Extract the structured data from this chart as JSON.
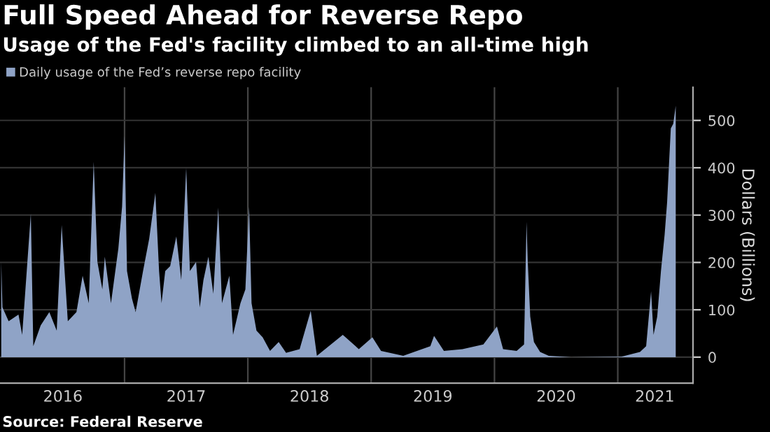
{
  "chart_data": {
    "type": "area",
    "title": "Full Speed Ahead for Reverse Repo",
    "subtitle": "Usage of the Fed's facility climbed to an all-time high",
    "ylabel": "Dollars (Billions)",
    "annotations": [
      "Source: Federal Reserve"
    ],
    "x": [
      2016.0,
      2016.01,
      2016.06,
      2016.14,
      2016.17,
      2016.24,
      2016.26,
      2016.32,
      2016.39,
      2016.45,
      2016.49,
      2016.54,
      2016.61,
      2016.66,
      2016.71,
      2016.72,
      2016.75,
      2016.78,
      2016.82,
      2016.84,
      2016.89,
      2016.95,
      2016.98,
      2017.0,
      2017.02,
      2017.06,
      2017.09,
      2017.15,
      2017.2,
      2017.25,
      2017.28,
      2017.3,
      2017.33,
      2017.37,
      2017.42,
      2017.46,
      2017.5,
      2017.53,
      2017.58,
      2017.61,
      2017.64,
      2017.68,
      2017.72,
      2017.76,
      2017.79,
      2017.85,
      2017.88,
      2017.94,
      2017.98,
      2018.01,
      2018.03,
      2018.07,
      2018.12,
      2018.18,
      2018.25,
      2018.31,
      2018.42,
      2018.51,
      2018.56,
      2018.77,
      2018.9,
      2019.01,
      2019.08,
      2019.26,
      2019.48,
      2019.51,
      2019.59,
      2019.74,
      2019.91,
      2020.02,
      2020.07,
      2020.18,
      2020.24,
      2020.26,
      2020.27,
      2020.29,
      2020.32,
      2020.37,
      2020.44,
      2020.62,
      2021.03,
      2021.18,
      2021.23,
      2021.27,
      2021.29,
      2021.32,
      2021.35,
      2021.38,
      2021.4,
      2021.43,
      2021.45,
      2021.47
    ],
    "series": [
      {
        "name": "Daily usage of the Fed’s reverse repo facility",
        "color": "#8fa3c6",
        "values": [
          201,
          105,
          76,
          90,
          47,
          303,
          23,
          67,
          95,
          56,
          279,
          76,
          95,
          172,
          114,
          192,
          413,
          201,
          143,
          212,
          114,
          230,
          318,
          468,
          182,
          124,
          95,
          182,
          250,
          347,
          182,
          114,
          182,
          192,
          255,
          163,
          400,
          182,
          201,
          105,
          163,
          212,
          134,
          316,
          114,
          172,
          47,
          114,
          143,
          318,
          114,
          56,
          42,
          13,
          32,
          9,
          17,
          98,
          3,
          47,
          17,
          42,
          13,
          3,
          23,
          45,
          13,
          17,
          27,
          65,
          17,
          13,
          27,
          286,
          201,
          86,
          32,
          11,
          3,
          0,
          1,
          11,
          23,
          139,
          47,
          86,
          182,
          259,
          327,
          483,
          493,
          531
        ]
      }
    ],
    "xlim": [
      2015.99,
      2021.61
    ],
    "xticks": [
      {
        "value": 2017,
        "label": null
      },
      {
        "value": 2018,
        "label": null
      },
      {
        "value": 2019,
        "label": null
      },
      {
        "value": 2020,
        "label": null
      },
      {
        "value": 2021,
        "label": null
      },
      {
        "value": 2016.5,
        "label": "2016"
      },
      {
        "value": 2017.5,
        "label": "2017"
      },
      {
        "value": 2018.5,
        "label": "2018"
      },
      {
        "value": 2019.5,
        "label": "2019"
      },
      {
        "value": 2020.5,
        "label": "2020"
      },
      {
        "value": 2021.3,
        "label": "2021"
      }
    ],
    "ylim": [
      -55,
      570
    ],
    "yticks": [
      0,
      100,
      200,
      300,
      400,
      500
    ],
    "grid": true,
    "legend": "top left"
  }
}
